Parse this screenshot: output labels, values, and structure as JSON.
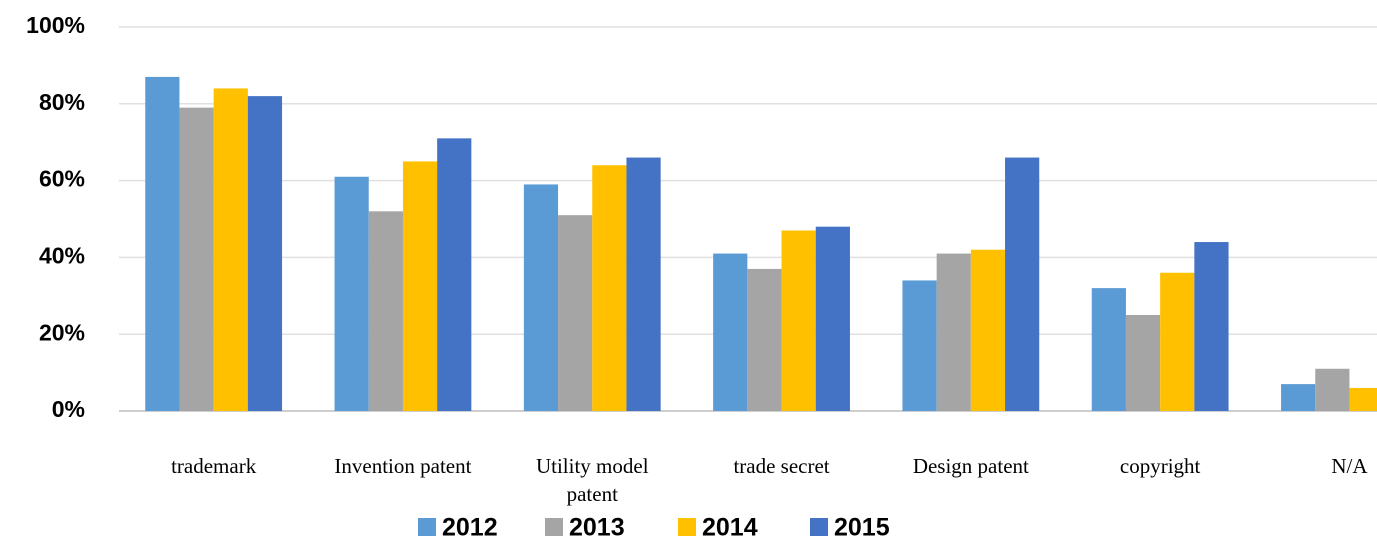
{
  "chart_data": {
    "type": "bar",
    "categories": [
      "trademark",
      "Invention patent",
      "Utility model patent",
      "trade secret",
      "Design patent",
      "copyright",
      "N/A"
    ],
    "series": [
      {
        "name": "2012",
        "color": "#5b9bd5",
        "values": [
          87,
          61,
          59,
          41,
          34,
          32,
          7
        ]
      },
      {
        "name": "2013",
        "color": "#a5a5a5",
        "values": [
          79,
          52,
          51,
          37,
          41,
          25,
          11
        ]
      },
      {
        "name": "2014",
        "color": "#ffc000",
        "values": [
          84,
          65,
          64,
          47,
          42,
          36,
          6
        ]
      },
      {
        "name": "2015",
        "color": "#4472c4",
        "values": [
          82,
          71,
          66,
          48,
          66,
          44,
          null
        ]
      }
    ],
    "ylim": [
      0,
      100
    ],
    "yticks": [
      {
        "value": 0,
        "label": "0%"
      },
      {
        "value": 20,
        "label": "20%"
      },
      {
        "value": 40,
        "label": "40%"
      },
      {
        "value": 60,
        "label": "60%"
      },
      {
        "value": 80,
        "label": "80%"
      },
      {
        "value": 100,
        "label": "100%"
      }
    ],
    "grid": true,
    "legend": "bottom"
  }
}
